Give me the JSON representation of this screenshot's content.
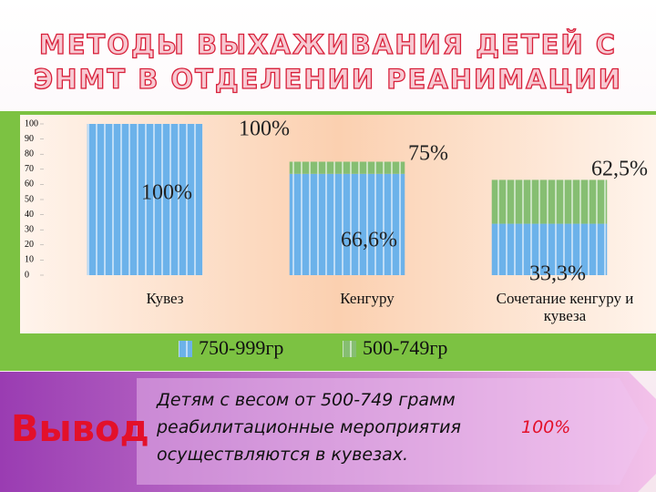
{
  "title_lines": [
    "МЕТОДЫ ВЫХАЖИВАНИЯ ДЕТЕЙ С",
    "ЭНМТ В ОТДЕЛЕНИИ РЕАНИМАЦИИ"
  ],
  "chart_data": {
    "type": "bar",
    "stacked": true,
    "categories": [
      "Кувез",
      "Кенгуру",
      "Сочетание кенгуру и кувеза"
    ],
    "series": [
      {
        "name": "750-999гр",
        "color": "#6cb2ea",
        "values": [
          100,
          67,
          34
        ]
      },
      {
        "name": "500-749гр",
        "color": "#86be72",
        "values": [
          0,
          8,
          29
        ]
      }
    ],
    "ylim": [
      0,
      100
    ],
    "yticks": [
      0,
      10,
      20,
      30,
      40,
      50,
      60,
      70,
      80,
      90,
      100
    ],
    "annotations": [
      "100%",
      "75%",
      "62,5%",
      "100%",
      "66,6%",
      "33,3%"
    ]
  },
  "conclusion": {
    "heading": "Вывод",
    "lines": [
      "Детям с весом от 500-749 грамм",
      "реабилитационные мероприятия",
      "осуществляются в кувезах."
    ],
    "highlight": "100%"
  }
}
